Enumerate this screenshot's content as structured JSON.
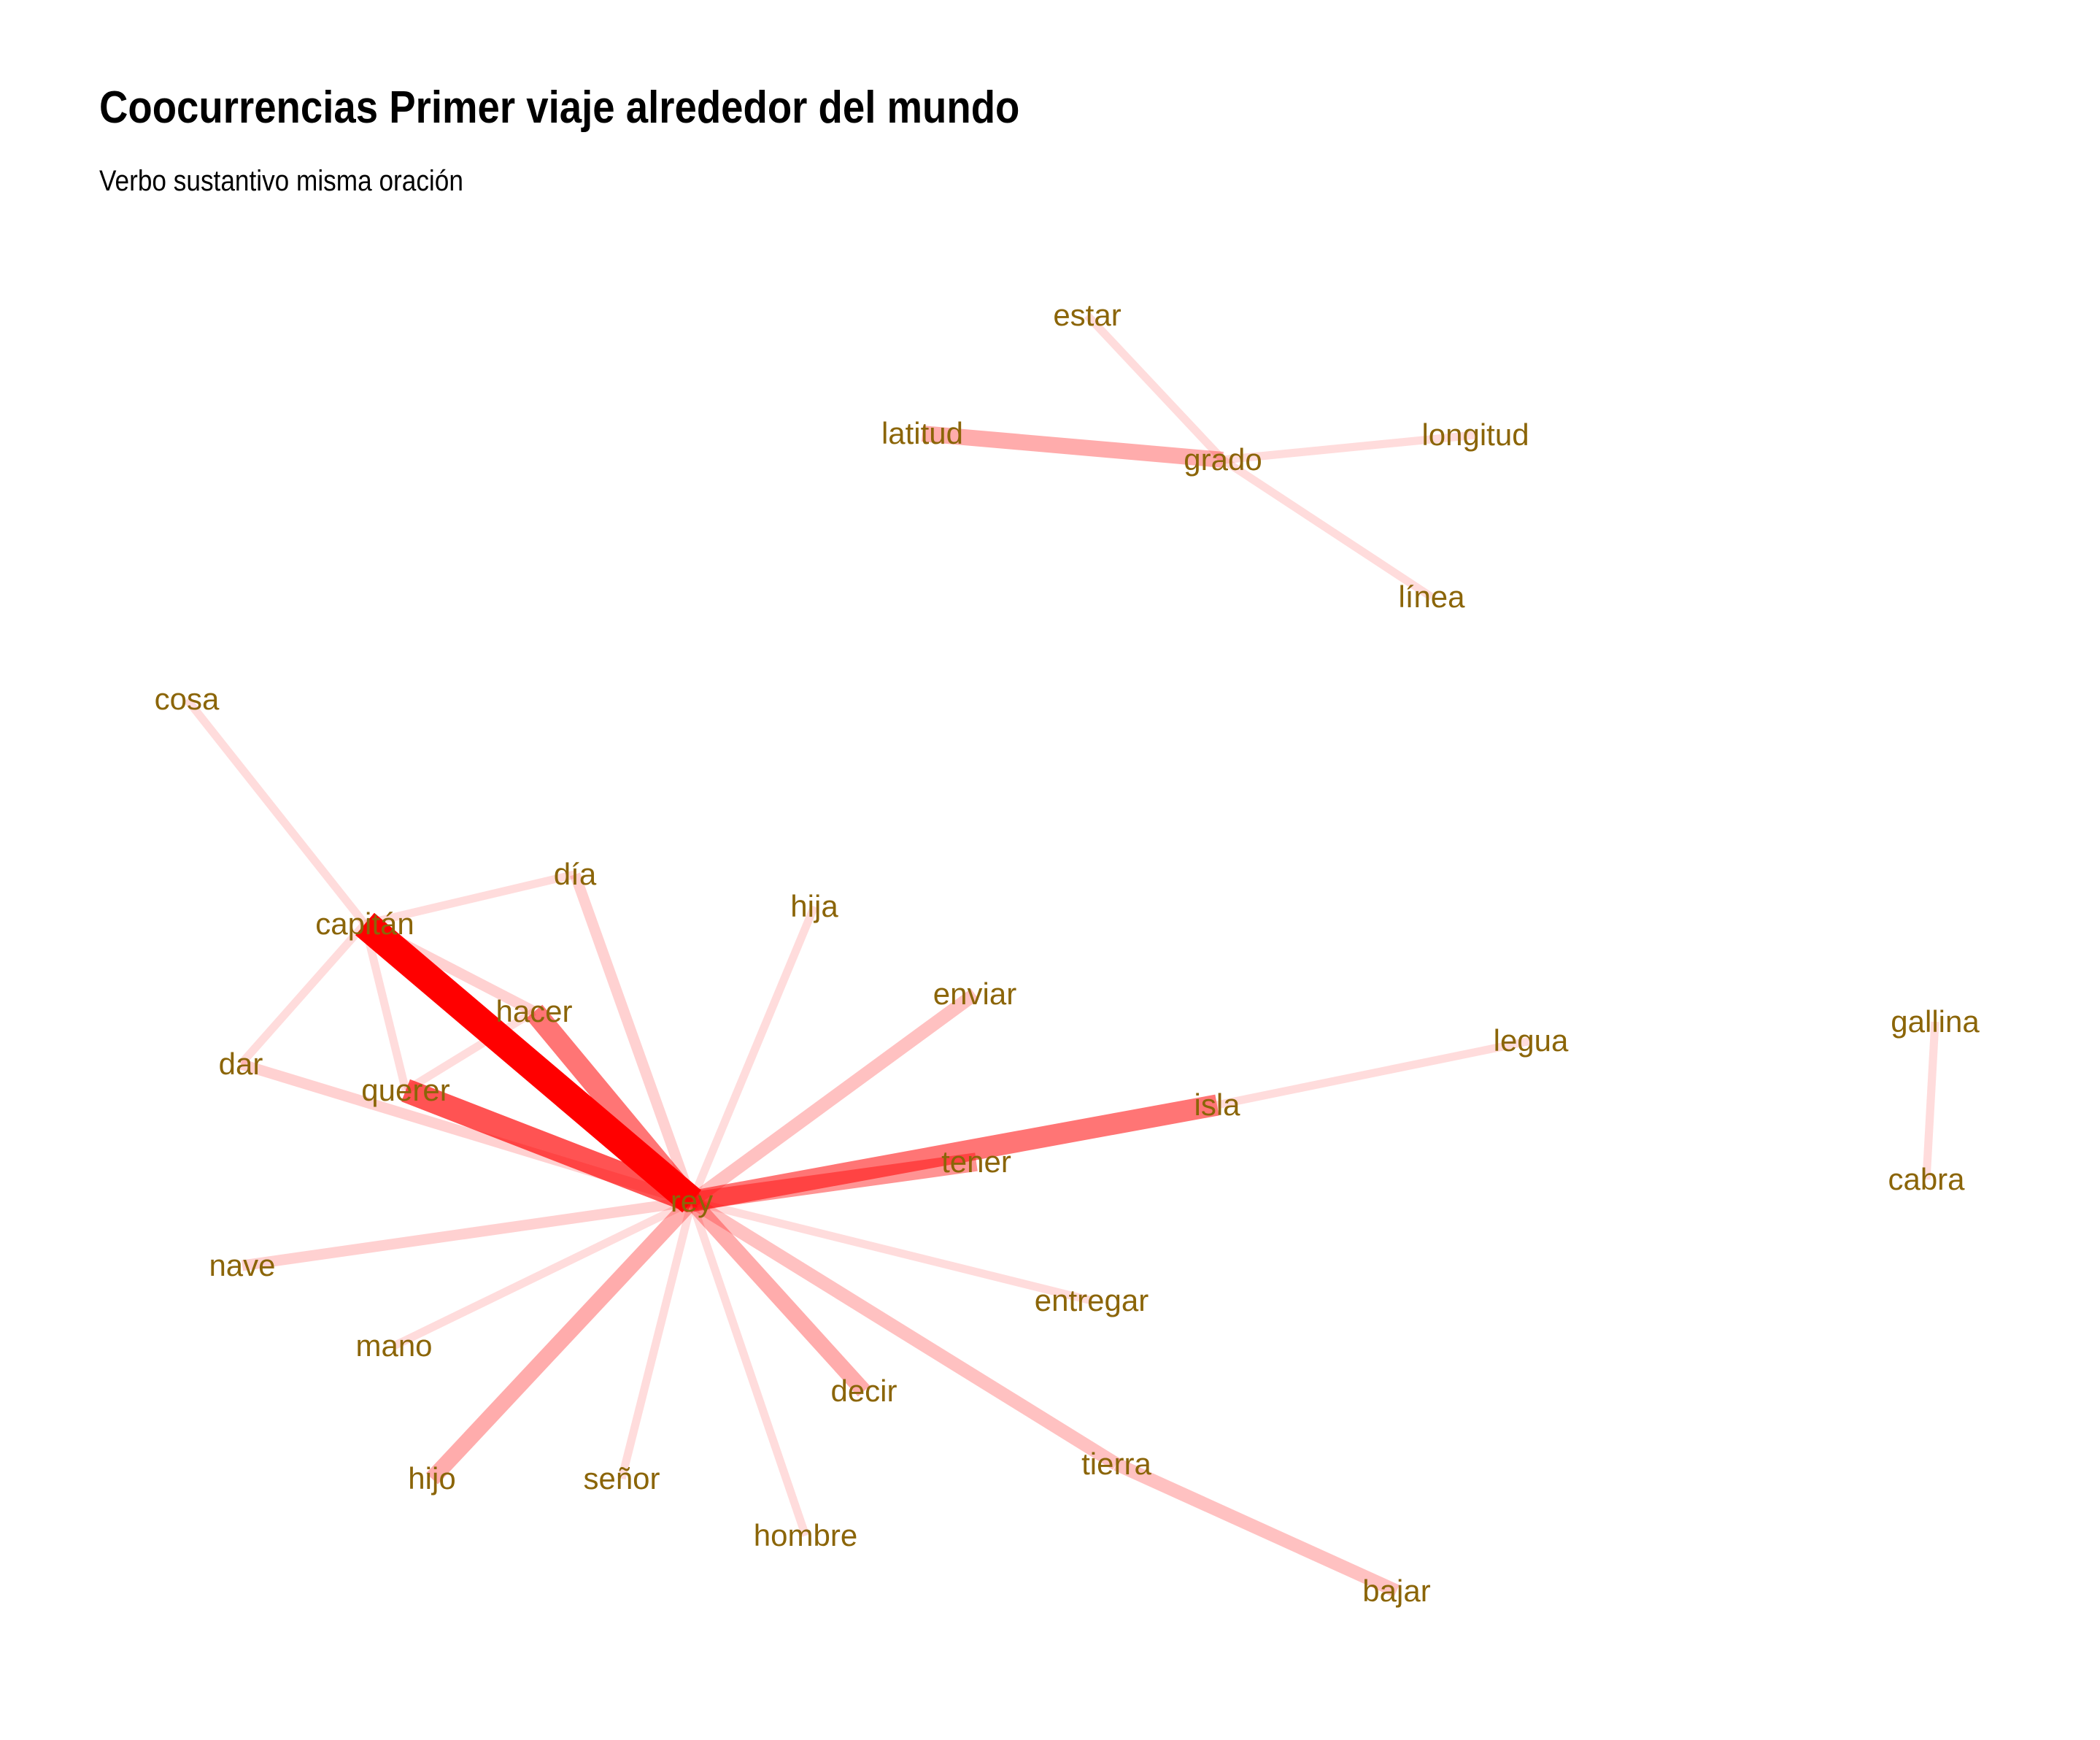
{
  "title": "Coocurrencias Primer viaje alrededor del mundo",
  "subtitle": "Verbo sustantivo misma oración",
  "colors": {
    "edge": "#ff0000",
    "label": "#8b6508",
    "background": "#ffffff"
  },
  "nodes": [
    {
      "id": "estar",
      "label": "estar"
    },
    {
      "id": "latitud",
      "label": "latitud"
    },
    {
      "id": "grado",
      "label": "grado"
    },
    {
      "id": "longitud",
      "label": "longitud"
    },
    {
      "id": "linea",
      "label": "línea"
    },
    {
      "id": "cosa",
      "label": "cosa"
    },
    {
      "id": "dia",
      "label": "día"
    },
    {
      "id": "capitan",
      "label": "capitán"
    },
    {
      "id": "hija",
      "label": "hija"
    },
    {
      "id": "enviar",
      "label": "enviar"
    },
    {
      "id": "hacer",
      "label": "hacer"
    },
    {
      "id": "dar",
      "label": "dar"
    },
    {
      "id": "querer",
      "label": "querer"
    },
    {
      "id": "legua",
      "label": "legua"
    },
    {
      "id": "gallina",
      "label": "gallina"
    },
    {
      "id": "isla",
      "label": "isla"
    },
    {
      "id": "tener",
      "label": "tener"
    },
    {
      "id": "rey",
      "label": "rey"
    },
    {
      "id": "cabra",
      "label": "cabra"
    },
    {
      "id": "nave",
      "label": "nave"
    },
    {
      "id": "entregar",
      "label": "entregar"
    },
    {
      "id": "mano",
      "label": "mano"
    },
    {
      "id": "decir",
      "label": "decir"
    },
    {
      "id": "tierra",
      "label": "tierra"
    },
    {
      "id": "hijo",
      "label": "hijo"
    },
    {
      "id": "senor",
      "label": "señor"
    },
    {
      "id": "hombre",
      "label": "hombre"
    },
    {
      "id": "bajar",
      "label": "bajar"
    }
  ],
  "edges": [
    {
      "source": "rey",
      "target": "capitan",
      "weight": 10
    },
    {
      "source": "rey",
      "target": "querer",
      "weight": 8
    },
    {
      "source": "rey",
      "target": "isla",
      "weight": 7
    },
    {
      "source": "rey",
      "target": "hacer",
      "weight": 7
    },
    {
      "source": "rey",
      "target": "tener",
      "weight": 6
    },
    {
      "source": "rey",
      "target": "decir",
      "weight": 5
    },
    {
      "source": "rey",
      "target": "hijo",
      "weight": 5
    },
    {
      "source": "rey",
      "target": "enviar",
      "weight": 4
    },
    {
      "source": "rey",
      "target": "tierra",
      "weight": 4
    },
    {
      "source": "tierra",
      "target": "bajar",
      "weight": 4
    },
    {
      "source": "rey",
      "target": "dia",
      "weight": 3
    },
    {
      "source": "rey",
      "target": "dar",
      "weight": 3
    },
    {
      "source": "rey",
      "target": "nave",
      "weight": 3
    },
    {
      "source": "rey",
      "target": "hija",
      "weight": 2
    },
    {
      "source": "rey",
      "target": "senor",
      "weight": 2
    },
    {
      "source": "rey",
      "target": "entregar",
      "weight": 2
    },
    {
      "source": "rey",
      "target": "mano",
      "weight": 2
    },
    {
      "source": "rey",
      "target": "hombre",
      "weight": 2
    },
    {
      "source": "capitan",
      "target": "hacer",
      "weight": 3
    },
    {
      "source": "capitan",
      "target": "cosa",
      "weight": 2
    },
    {
      "source": "capitan",
      "target": "dia",
      "weight": 2
    },
    {
      "source": "capitan",
      "target": "dar",
      "weight": 2
    },
    {
      "source": "capitan",
      "target": "querer",
      "weight": 2
    },
    {
      "source": "hacer",
      "target": "querer",
      "weight": 2
    },
    {
      "source": "isla",
      "target": "legua",
      "weight": 2
    },
    {
      "source": "latitud",
      "target": "grado",
      "weight": 5
    },
    {
      "source": "grado",
      "target": "estar",
      "weight": 2
    },
    {
      "source": "grado",
      "target": "longitud",
      "weight": 2
    },
    {
      "source": "grado",
      "target": "linea",
      "weight": 2
    },
    {
      "source": "gallina",
      "target": "cabra",
      "weight": 2
    }
  ]
}
